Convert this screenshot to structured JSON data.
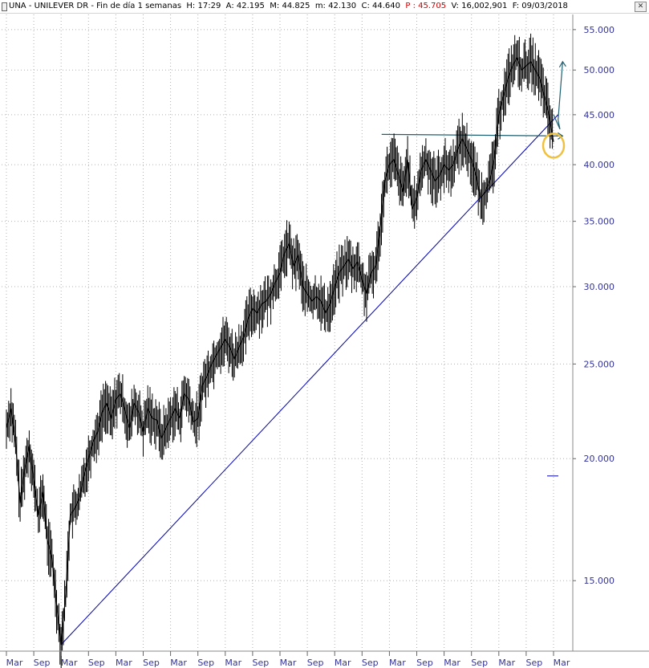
{
  "header": {
    "symbol": "UNA",
    "name": "UNILEVER DR",
    "period": "Fin de día 1 semanas",
    "h_label": "H:",
    "h_value": "17:29",
    "a_label": "A:",
    "a_value": "42.195",
    "m_label": "M:",
    "m_value": "44.825",
    "mn_label": "m:",
    "mn_value": "42.130",
    "c_label": "C:",
    "c_value": "44.640",
    "p_label": "P :",
    "p_value": "45.705",
    "v_label": "V:",
    "v_value": "16,002,901",
    "f_label": "F:",
    "f_value": "09/03/2018",
    "close_icon": "close-icon"
  },
  "colors": {
    "price": "#000000",
    "trendline": "#0000aa",
    "resistance": "#1f5f6f",
    "highlight": "#f0c040",
    "grid": "#b0b0b0",
    "axis_text": "#333399",
    "warning_text": "#d00000"
  },
  "chart_data": {
    "type": "line",
    "scale": "log",
    "ylim": [
      12.8,
      57
    ],
    "y_ticks": [
      15,
      20,
      25,
      30,
      35,
      40,
      45,
      50,
      55
    ],
    "y_tick_labels": [
      "15.000",
      "20.000",
      "25.000",
      "30.000",
      "35.000",
      "40.000",
      "45.000",
      "50.000",
      "55.000"
    ],
    "x_tick_labels": [
      "Mar",
      "Sep",
      "Mar",
      "Sep",
      "Mar",
      "Sep",
      "Mar",
      "Sep",
      "Mar",
      "Sep",
      "Mar",
      "Sep",
      "Mar",
      "Sep",
      "Mar",
      "Sep",
      "Mar",
      "Sep",
      "Mar",
      "Sep",
      "Mar"
    ],
    "x_start": "2008-03",
    "x_end": "2018-03",
    "grid": true,
    "series": [
      {
        "values": [
          [
            "2008-03",
            21.5
          ],
          [
            "2008-04",
            22.5
          ],
          [
            "2008-05",
            20.8
          ],
          [
            "2008-06",
            18.0
          ],
          [
            "2008-07",
            19.5
          ],
          [
            "2008-08",
            20.6
          ],
          [
            "2008-09",
            19.0
          ],
          [
            "2008-10",
            17.5
          ],
          [
            "2008-11",
            18.5
          ],
          [
            "2008-12",
            16.5
          ],
          [
            "2009-01",
            15.8
          ],
          [
            "2009-02",
            14.2
          ],
          [
            "2009-03",
            12.9
          ],
          [
            "2009-04",
            14.5
          ],
          [
            "2009-05",
            17.5
          ],
          [
            "2009-06",
            17.8
          ],
          [
            "2009-07",
            18.2
          ],
          [
            "2009-08",
            19.2
          ],
          [
            "2009-09",
            20.0
          ],
          [
            "2009-10",
            20.8
          ],
          [
            "2009-11",
            21.3
          ],
          [
            "2009-12",
            22.3
          ],
          [
            "2010-01",
            22.8
          ],
          [
            "2010-02",
            22.0
          ],
          [
            "2010-03",
            23.0
          ],
          [
            "2010-04",
            23.3
          ],
          [
            "2010-05",
            22.4
          ],
          [
            "2010-06",
            21.5
          ],
          [
            "2010-07",
            22.8
          ],
          [
            "2010-08",
            22.3
          ],
          [
            "2010-09",
            21.3
          ],
          [
            "2010-10",
            22.5
          ],
          [
            "2010-11",
            22.0
          ],
          [
            "2010-12",
            21.9
          ],
          [
            "2011-01",
            21.0
          ],
          [
            "2011-02",
            21.5
          ],
          [
            "2011-03",
            22.0
          ],
          [
            "2011-04",
            22.5
          ],
          [
            "2011-05",
            22.0
          ],
          [
            "2011-06",
            23.3
          ],
          [
            "2011-07",
            23.0
          ],
          [
            "2011-08",
            21.8
          ],
          [
            "2011-09",
            22.0
          ],
          [
            "2011-10",
            23.8
          ],
          [
            "2011-11",
            24.3
          ],
          [
            "2011-12",
            25.0
          ],
          [
            "2012-01",
            25.5
          ],
          [
            "2012-02",
            26.0
          ],
          [
            "2012-03",
            26.5
          ],
          [
            "2012-04",
            26.0
          ],
          [
            "2012-05",
            25.3
          ],
          [
            "2012-06",
            26.0
          ],
          [
            "2012-07",
            26.6
          ],
          [
            "2012-08",
            27.8
          ],
          [
            "2012-09",
            28.5
          ],
          [
            "2012-10",
            28.2
          ],
          [
            "2012-11",
            28.8
          ],
          [
            "2012-12",
            29.0
          ],
          [
            "2013-01",
            29.5
          ],
          [
            "2013-02",
            30.3
          ],
          [
            "2013-03",
            31.0
          ],
          [
            "2013-04",
            32.5
          ],
          [
            "2013-05",
            33.2
          ],
          [
            "2013-06",
            31.5
          ],
          [
            "2013-07",
            32.3
          ],
          [
            "2013-08",
            30.0
          ],
          [
            "2013-09",
            29.5
          ],
          [
            "2013-10",
            29.0
          ],
          [
            "2013-11",
            29.3
          ],
          [
            "2013-12",
            29.0
          ],
          [
            "2014-01",
            28.2
          ],
          [
            "2014-02",
            28.8
          ],
          [
            "2014-03",
            30.0
          ],
          [
            "2014-04",
            31.0
          ],
          [
            "2014-05",
            31.5
          ],
          [
            "2014-06",
            32.0
          ],
          [
            "2014-07",
            31.3
          ],
          [
            "2014-08",
            31.8
          ],
          [
            "2014-09",
            30.5
          ],
          [
            "2014-10",
            29.5
          ],
          [
            "2014-11",
            31.0
          ],
          [
            "2014-12",
            31.5
          ],
          [
            "2015-01",
            34.5
          ],
          [
            "2015-02",
            38.5
          ],
          [
            "2015-03",
            40.0
          ],
          [
            "2015-04",
            40.5
          ],
          [
            "2015-05",
            39.0
          ],
          [
            "2015-06",
            37.5
          ],
          [
            "2015-07",
            40.5
          ],
          [
            "2015-08",
            36.0
          ],
          [
            "2015-09",
            37.0
          ],
          [
            "2015-10",
            39.5
          ],
          [
            "2015-11",
            40.5
          ],
          [
            "2015-12",
            39.5
          ],
          [
            "2016-01",
            38.5
          ],
          [
            "2016-02",
            39.0
          ],
          [
            "2016-03",
            40.0
          ],
          [
            "2016-04",
            39.5
          ],
          [
            "2016-05",
            40.0
          ],
          [
            "2016-06",
            41.5
          ],
          [
            "2016-07",
            42.5
          ],
          [
            "2016-08",
            41.5
          ],
          [
            "2016-09",
            40.5
          ],
          [
            "2016-10",
            39.0
          ],
          [
            "2016-11",
            37.0
          ],
          [
            "2016-12",
            37.5
          ],
          [
            "2017-01",
            38.5
          ],
          [
            "2017-02",
            40.5
          ],
          [
            "2017-03",
            45.0
          ],
          [
            "2017-04",
            47.0
          ],
          [
            "2017-05",
            49.0
          ],
          [
            "2017-06",
            50.5
          ],
          [
            "2017-07",
            51.5
          ],
          [
            "2017-08",
            50.0
          ],
          [
            "2017-09",
            50.5
          ],
          [
            "2017-10",
            51.0
          ],
          [
            "2017-11",
            50.0
          ],
          [
            "2017-12",
            49.0
          ],
          [
            "2018-01",
            47.0
          ],
          [
            "2018-02",
            45.0
          ],
          [
            "2018-03",
            42.2
          ]
        ]
      }
    ],
    "annotations": [
      {
        "kind": "trendline",
        "from": [
          "2009-03",
          12.9
        ],
        "to": [
          "2018-04",
          45.0
        ]
      },
      {
        "kind": "resistance",
        "from": [
          "2015-02",
          42.8
        ],
        "to": [
          "2018-05",
          42.8
        ]
      },
      {
        "kind": "circle",
        "at": [
          "2018-03",
          42.0
        ]
      },
      {
        "kind": "projection-arrow",
        "points": [
          [
            "2018-03",
            45.0
          ],
          [
            "2018-04",
            46.5
          ],
          [
            "2018-05",
            51.0
          ]
        ]
      },
      {
        "kind": "marker",
        "at": [
          "2018-03",
          19.2
        ]
      }
    ]
  }
}
